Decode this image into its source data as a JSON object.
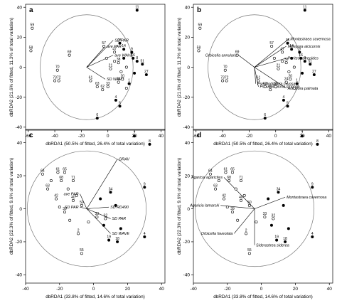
{
  "figure": {
    "background": "#ffffff",
    "ink": "#000000"
  },
  "chart_data": [
    {
      "panel": "a",
      "type": "scatter",
      "xlabel": "dbRDA1 (50.5% of fitted, 26.4% of total variation)",
      "ylabel": "dbRDA2 (21.6% of fitted, 11.3% of total variation)",
      "xlim": [
        -62,
        43
      ],
      "ylim": [
        -42,
        42
      ],
      "xticks": [
        -60,
        -40,
        -20,
        0,
        20,
        40
      ],
      "yticks": [
        -40,
        -20,
        0,
        20,
        40
      ],
      "circle": {
        "cx": -16,
        "cy": 0,
        "r": 35
      },
      "vectors": [
        {
          "label": "ave PAR",
          "x": -2,
          "y": 14
        },
        {
          "label": "SD PAR",
          "x": 4,
          "y": 18
        },
        {
          "label": "ave WAVE",
          "x": 4,
          "y": 8
        },
        {
          "label": "SD WAVE",
          "x": -2,
          "y": -8
        }
      ],
      "points": [
        {
          "label": "11",
          "x": 22,
          "y": 38,
          "filled": true
        },
        {
          "label": "59",
          "x": -57,
          "y": 26,
          "filled": false
        },
        {
          "label": "58",
          "x": -58,
          "y": 11,
          "filled": false
        },
        {
          "label": "69",
          "x": -29,
          "y": 8,
          "filled": false
        },
        {
          "label": "70",
          "x": -38,
          "y": -2,
          "filled": false
        },
        {
          "label": "73",
          "x": -40,
          "y": -9,
          "filled": false
        },
        {
          "label": "72",
          "x": -37,
          "y": -9,
          "filled": false
        },
        {
          "label": "57",
          "x": -3,
          "y": 14,
          "filled": false
        },
        {
          "label": "47",
          "x": 5,
          "y": 10,
          "filled": false
        },
        {
          "label": "35",
          "x": 9,
          "y": 16,
          "filled": true
        },
        {
          "label": "14",
          "x": 12,
          "y": 12,
          "filled": true
        },
        {
          "label": "38",
          "x": 8,
          "y": 3,
          "filled": false
        },
        {
          "label": "21",
          "x": 2,
          "y": -1,
          "filled": false
        },
        {
          "label": "61",
          "x": -13,
          "y": -9,
          "filled": false
        },
        {
          "label": "63",
          "x": -8,
          "y": -13,
          "filled": false
        },
        {
          "label": "62",
          "x": -4,
          "y": -15,
          "filled": false
        },
        {
          "label": "33",
          "x": 0,
          "y": -13,
          "filled": false
        },
        {
          "label": "24",
          "x": 8,
          "y": -10,
          "filled": false
        },
        {
          "label": "20",
          "x": 11,
          "y": -8,
          "filled": false
        },
        {
          "label": "1",
          "x": 16,
          "y": -11,
          "filled": true
        },
        {
          "label": "27",
          "x": 29,
          "y": -5,
          "filled": true
        },
        {
          "label": "51",
          "x": 26,
          "y": 2,
          "filled": true
        },
        {
          "label": "16",
          "x": 19,
          "y": 6,
          "filled": true
        },
        {
          "label": "9",
          "x": 18,
          "y": 10,
          "filled": true
        },
        {
          "label": "8",
          "x": 22,
          "y": 4,
          "filled": true
        },
        {
          "label": "4",
          "x": 6,
          "y": -22,
          "filled": true
        },
        {
          "label": "5",
          "x": 9,
          "y": -26,
          "filled": true
        },
        {
          "label": "6",
          "x": -8,
          "y": -34,
          "filled": true
        },
        {
          "label": "",
          "x": 12,
          "y": 6,
          "filled": true
        },
        {
          "label": "",
          "x": 14,
          "y": 0,
          "filled": false
        },
        {
          "label": "",
          "x": 5,
          "y": 4,
          "filled": false
        },
        {
          "label": "",
          "x": 10,
          "y": -3,
          "filled": false
        },
        {
          "label": "",
          "x": 20,
          "y": -4,
          "filled": true
        },
        {
          "label": "",
          "x": -1,
          "y": 6,
          "filled": false
        },
        {
          "label": "",
          "x": 14,
          "y": -14,
          "filled": false
        }
      ]
    },
    {
      "panel": "b",
      "type": "scatter",
      "xlabel": "dbRDA1 (50.5% of fitted, 26.4% of total variation)",
      "ylabel": "dbRDA2 (21.6% of fitted, 11.3% of total variation)",
      "xlim": [
        -62,
        43
      ],
      "ylim": [
        -42,
        42
      ],
      "xticks": [
        -60,
        -40,
        -20,
        0,
        20,
        40
      ],
      "yticks": [
        -40,
        -20,
        0,
        20,
        40
      ],
      "circle": {
        "cx": -16,
        "cy": 0,
        "r": 35
      },
      "vectors": [
        {
          "label": "Millepora alcicornis",
          "x": 8,
          "y": 14
        },
        {
          "label": "Montastraea cavernosa",
          "x": 10,
          "y": 19
        },
        {
          "label": "Orbicella annularis",
          "x": -28,
          "y": 8
        },
        {
          "label": "Porites astreoides",
          "x": 8,
          "y": 6
        },
        {
          "label": "Pseudodiploria clivosa",
          "x": -15,
          "y": -11
        },
        {
          "label": "Pseudodiploria strigosa",
          "x": -13,
          "y": -13
        },
        {
          "label": "Acropora palmata",
          "x": 8,
          "y": -14
        }
      ],
      "points": [
        {
          "label": "11",
          "x": 22,
          "y": 38,
          "filled": true
        },
        {
          "label": "59",
          "x": -57,
          "y": 26,
          "filled": false
        },
        {
          "label": "58",
          "x": -58,
          "y": 11,
          "filled": false
        },
        {
          "label": "69",
          "x": -29,
          "y": 8,
          "filled": false
        },
        {
          "label": "70",
          "x": -38,
          "y": -2,
          "filled": false
        },
        {
          "label": "73",
          "x": -40,
          "y": -9,
          "filled": false
        },
        {
          "label": "72",
          "x": -37,
          "y": -9,
          "filled": false
        },
        {
          "label": "57",
          "x": -3,
          "y": 14,
          "filled": false
        },
        {
          "label": "47",
          "x": 5,
          "y": 10,
          "filled": false
        },
        {
          "label": "35",
          "x": 9,
          "y": 16,
          "filled": true
        },
        {
          "label": "14",
          "x": 12,
          "y": 12,
          "filled": true
        },
        {
          "label": "38",
          "x": 8,
          "y": 3,
          "filled": false
        },
        {
          "label": "21",
          "x": 2,
          "y": -1,
          "filled": false
        },
        {
          "label": "61",
          "x": -13,
          "y": -9,
          "filled": false
        },
        {
          "label": "63",
          "x": -8,
          "y": -13,
          "filled": false
        },
        {
          "label": "62",
          "x": -4,
          "y": -15,
          "filled": false
        },
        {
          "label": "33",
          "x": 0,
          "y": -13,
          "filled": false
        },
        {
          "label": "24",
          "x": 8,
          "y": -10,
          "filled": false
        },
        {
          "label": "20",
          "x": 11,
          "y": -8,
          "filled": false
        },
        {
          "label": "1",
          "x": 16,
          "y": -11,
          "filled": true
        },
        {
          "label": "27",
          "x": 29,
          "y": -5,
          "filled": true
        },
        {
          "label": "51",
          "x": 26,
          "y": 2,
          "filled": true
        },
        {
          "label": "16",
          "x": 19,
          "y": 6,
          "filled": true
        },
        {
          "label": "9",
          "x": 18,
          "y": 10,
          "filled": true
        },
        {
          "label": "8",
          "x": 22,
          "y": 4,
          "filled": true
        },
        {
          "label": "4",
          "x": 6,
          "y": -22,
          "filled": true
        },
        {
          "label": "5",
          "x": 9,
          "y": -26,
          "filled": true
        },
        {
          "label": "6",
          "x": -8,
          "y": -34,
          "filled": true
        },
        {
          "label": "",
          "x": 12,
          "y": 6,
          "filled": true
        },
        {
          "label": "",
          "x": 14,
          "y": 0,
          "filled": false
        },
        {
          "label": "",
          "x": 5,
          "y": 4,
          "filled": false
        },
        {
          "label": "",
          "x": 10,
          "y": -3,
          "filled": false
        },
        {
          "label": "",
          "x": 20,
          "y": -4,
          "filled": true
        },
        {
          "label": "",
          "x": -1,
          "y": 6,
          "filled": false
        },
        {
          "label": "",
          "x": 14,
          "y": -14,
          "filled": false
        }
      ]
    },
    {
      "panel": "c",
      "type": "scatter",
      "xlabel": "dbRDA1 (33.8% of fitted, 14.6% of total variation)",
      "ylabel": "dbRDA2 (22.3% of fitted, 9.6% of total variation)",
      "xlim": [
        -40,
        42
      ],
      "ylim": [
        -45,
        48
      ],
      "xticks": [
        -40,
        -20,
        0,
        20,
        40
      ],
      "yticks": [
        -40,
        -20,
        0,
        20,
        40
      ],
      "circle": {
        "cx": -4,
        "cy": 0,
        "r": 35
      },
      "vectors": [
        {
          "label": "GRAV",
          "x": 14,
          "y": 30
        },
        {
          "label": "ave PAR",
          "x": -8,
          "y": 9
        },
        {
          "label": "SD PAR",
          "x": -8,
          "y": 1
        },
        {
          "label": "SD PAR",
          "x": 10,
          "y": -6
        },
        {
          "label": "SD WAVE",
          "x": 10,
          "y": -15
        },
        {
          "label": "SD RD490",
          "x": 9,
          "y": 1
        }
      ],
      "points": [
        {
          "label": "7",
          "x": 24,
          "y": 44,
          "filled": true
        },
        {
          "label": "8",
          "x": 33,
          "y": 39,
          "filled": true
        },
        {
          "label": "9",
          "x": 30,
          "y": 13,
          "filled": true
        },
        {
          "label": "4",
          "x": 30,
          "y": -17,
          "filled": true
        },
        {
          "label": "64",
          "x": -30,
          "y": 21,
          "filled": false
        },
        {
          "label": "61",
          "x": -21,
          "y": 22,
          "filled": false
        },
        {
          "label": "65",
          "x": -17,
          "y": 22,
          "filled": false
        },
        {
          "label": "71",
          "x": -12,
          "y": 17,
          "filled": false
        },
        {
          "label": "68",
          "x": -19,
          "y": 17,
          "filled": false
        },
        {
          "label": "63",
          "x": -27,
          "y": 12,
          "filled": false
        },
        {
          "label": "42",
          "x": -22,
          "y": 6,
          "filled": false
        },
        {
          "label": "39",
          "x": -17,
          "y": -2,
          "filled": false
        },
        {
          "label": "40",
          "x": -12,
          "y": 5,
          "filled": false
        },
        {
          "label": "50",
          "x": -7,
          "y": 2,
          "filled": false
        },
        {
          "label": "34",
          "x": 10,
          "y": 10,
          "filled": true
        },
        {
          "label": "33",
          "x": 2,
          "y": -5,
          "filled": false
        },
        {
          "label": "32",
          "x": 7,
          "y": -6,
          "filled": false
        },
        {
          "label": "2",
          "x": -9,
          "y": -15,
          "filled": false
        },
        {
          "label": "55",
          "x": -7,
          "y": -27,
          "filled": false
        },
        {
          "label": "19",
          "x": 9,
          "y": -19,
          "filled": true
        },
        {
          "label": "18",
          "x": 14,
          "y": -20,
          "filled": true
        },
        {
          "label": "",
          "x": -25,
          "y": 17,
          "filled": false
        },
        {
          "label": "",
          "x": -15,
          "y": 12,
          "filled": false
        },
        {
          "label": "",
          "x": -10,
          "y": 8,
          "filled": false
        },
        {
          "label": "",
          "x": 4,
          "y": 6,
          "filled": true
        },
        {
          "label": "",
          "x": 13,
          "y": 2,
          "filled": true
        },
        {
          "label": "",
          "x": 6,
          "y": -10,
          "filled": true
        },
        {
          "label": "",
          "x": -3,
          "y": -8,
          "filled": false
        },
        {
          "label": "",
          "x": -20,
          "y": 1,
          "filled": false
        },
        {
          "label": "",
          "x": -14,
          "y": -7,
          "filled": false
        },
        {
          "label": "",
          "x": 16,
          "y": -12,
          "filled": true
        }
      ]
    },
    {
      "panel": "d",
      "type": "scatter",
      "xlabel": "dbRDA1 (33.8% of fitted, 14.6% of total variation)",
      "ylabel": "dbRDA2 (22.3% of fitted, 9.6% of total variation)",
      "xlim": [
        -40,
        42
      ],
      "ylim": [
        -45,
        48
      ],
      "xticks": [
        -40,
        -20,
        0,
        20,
        40
      ],
      "yticks": [
        -40,
        -20,
        0,
        20,
        40
      ],
      "circle": {
        "cx": -4,
        "cy": 0,
        "r": 35
      },
      "vectors": [
        {
          "label": "Agaricia agaricites",
          "x": -22,
          "y": 19
        },
        {
          "label": "Agaricia lamarcki",
          "x": -24,
          "y": 2
        },
        {
          "label": "Orbicella faveolata",
          "x": -16,
          "y": -15
        },
        {
          "label": "Siderastrea siderea",
          "x": -4,
          "y": -22
        },
        {
          "label": "Montastraea cavernosa",
          "x": 14,
          "y": 7
        }
      ],
      "points": [
        {
          "label": "7",
          "x": 24,
          "y": 44,
          "filled": true
        },
        {
          "label": "8",
          "x": 33,
          "y": 39,
          "filled": true
        },
        {
          "label": "9",
          "x": 30,
          "y": 13,
          "filled": true
        },
        {
          "label": "4",
          "x": 30,
          "y": -17,
          "filled": true
        },
        {
          "label": "64",
          "x": -30,
          "y": 21,
          "filled": false
        },
        {
          "label": "61",
          "x": -21,
          "y": 22,
          "filled": false
        },
        {
          "label": "65",
          "x": -17,
          "y": 22,
          "filled": false
        },
        {
          "label": "71",
          "x": -12,
          "y": 17,
          "filled": false
        },
        {
          "label": "68",
          "x": -19,
          "y": 17,
          "filled": false
        },
        {
          "label": "63",
          "x": -27,
          "y": 12,
          "filled": false
        },
        {
          "label": "42",
          "x": -22,
          "y": 6,
          "filled": false
        },
        {
          "label": "39",
          "x": -17,
          "y": -2,
          "filled": false
        },
        {
          "label": "40",
          "x": -12,
          "y": 5,
          "filled": false
        },
        {
          "label": "50",
          "x": -7,
          "y": 2,
          "filled": false
        },
        {
          "label": "34",
          "x": 10,
          "y": 10,
          "filled": true
        },
        {
          "label": "33",
          "x": 2,
          "y": -5,
          "filled": false
        },
        {
          "label": "32",
          "x": 7,
          "y": -6,
          "filled": false
        },
        {
          "label": "2",
          "x": -9,
          "y": -15,
          "filled": false
        },
        {
          "label": "55",
          "x": -7,
          "y": -27,
          "filled": false
        },
        {
          "label": "19",
          "x": 9,
          "y": -19,
          "filled": true
        },
        {
          "label": "18",
          "x": 14,
          "y": -20,
          "filled": true
        },
        {
          "label": "",
          "x": -25,
          "y": 17,
          "filled": false
        },
        {
          "label": "",
          "x": -15,
          "y": 12,
          "filled": false
        },
        {
          "label": "",
          "x": -10,
          "y": 8,
          "filled": false
        },
        {
          "label": "",
          "x": 4,
          "y": 6,
          "filled": true
        },
        {
          "label": "",
          "x": 13,
          "y": 2,
          "filled": true
        },
        {
          "label": "",
          "x": 6,
          "y": -10,
          "filled": true
        },
        {
          "label": "",
          "x": -3,
          "y": -8,
          "filled": false
        },
        {
          "label": "",
          "x": -20,
          "y": 1,
          "filled": false
        },
        {
          "label": "",
          "x": -14,
          "y": -7,
          "filled": false
        },
        {
          "label": "",
          "x": 16,
          "y": -12,
          "filled": true
        }
      ]
    }
  ]
}
